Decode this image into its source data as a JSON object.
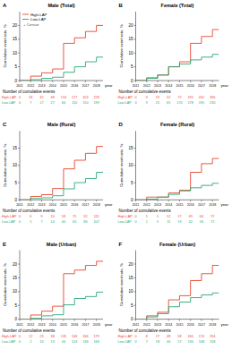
{
  "chart_data": [
    {
      "type": "line",
      "line_style": "step",
      "panel": "A",
      "title": "Male (Total)",
      "x_label": "year",
      "y_label": "Cumulative event rate, %",
      "events_title": "Number of cumulative events",
      "legend": "upper left",
      "censor_label": "+ Censor",
      "x": [
        2011,
        2012,
        2013,
        2014,
        2015,
        2016,
        2017,
        2018
      ],
      "xlim": [
        2011,
        2018.6
      ],
      "xticks": [
        2011,
        2012,
        2013,
        2014,
        2015,
        2016,
        2017,
        2018
      ],
      "ylim": [
        0,
        25
      ],
      "yticks": [
        0,
        5,
        10,
        15,
        20
      ],
      "series": [
        {
          "name": "High-LAP",
          "color": "#e8452c",
          "values": [
            0,
            1.6,
            2.8,
            4.2,
            13.5,
            15.5,
            17.8,
            20
          ],
          "events": [
            0,
            18,
            32,
            48,
            154,
            177,
            203,
            228
          ]
        },
        {
          "name": "Low-LAP",
          "color": "#2aa876",
          "values": [
            0,
            0.3,
            0.8,
            1.2,
            3,
            5,
            6.8,
            8.5
          ],
          "events": [
            0,
            7,
            17,
            27,
            66,
            110,
            150,
            199
          ]
        }
      ]
    },
    {
      "type": "line",
      "line_style": "step",
      "panel": "B",
      "title": "Female (Total)",
      "x_label": "year",
      "y_label": "Cumulative event rate, %",
      "events_title": "Number of cumulative events",
      "x": [
        2011,
        2012,
        2013,
        2014,
        2015,
        2016,
        2017,
        2018
      ],
      "xlim": [
        2011,
        2018.6
      ],
      "xticks": [
        2011,
        2012,
        2013,
        2014,
        2015,
        2016,
        2017,
        2018
      ],
      "ylim": [
        0,
        25
      ],
      "yticks": [
        0,
        5,
        10,
        15,
        20
      ],
      "series": [
        {
          "name": "High-LAP",
          "color": "#e8452c",
          "values": [
            0,
            1,
            2,
            5,
            6.8,
            13.5,
            16,
            18.5
          ],
          "events": [
            0,
            9,
            19,
            52,
            72,
            195,
            242,
            266
          ]
        },
        {
          "name": "Low-LAP",
          "color": "#2aa876",
          "values": [
            0,
            0.8,
            2,
            5,
            6,
            7.5,
            8.5,
            9.5
          ],
          "events": [
            0,
            9,
            25,
            65,
            170,
            178,
            195,
            230
          ]
        }
      ]
    },
    {
      "type": "line",
      "line_style": "step",
      "panel": "C",
      "title": "Male (Rural)",
      "x_label": "year",
      "y_label": "Cumulative event rate, %",
      "events_title": "Number of cumulative events",
      "x": [
        2011,
        2012,
        2013,
        2014,
        2015,
        2016,
        2017,
        2018
      ],
      "xlim": [
        2011,
        2018.6
      ],
      "xticks": [
        2011,
        2012,
        2013,
        2014,
        2015,
        2016,
        2017,
        2018
      ],
      "ylim": [
        0,
        20
      ],
      "yticks": [
        0,
        5,
        10,
        15
      ],
      "series": [
        {
          "name": "High-LAP",
          "color": "#e8452c",
          "values": [
            0,
            1,
            1.5,
            3.3,
            9,
            11.5,
            13.5,
            15.5
          ],
          "events": [
            0,
            6,
            9,
            20,
            58,
            75,
            92,
            115
          ]
        },
        {
          "name": "Low-LAP",
          "color": "#2aa876",
          "values": [
            0,
            0.4,
            0.6,
            1.2,
            3.2,
            5,
            6.2,
            8
          ],
          "events": [
            0,
            5,
            7,
            14,
            40,
            65,
            80,
            107
          ]
        }
      ]
    },
    {
      "type": "line",
      "line_style": "step",
      "panel": "D",
      "title": "Female (Rural)",
      "x_label": "year",
      "y_label": "Cumulative event rate, %",
      "events_title": "Number of cumulative events",
      "x": [
        2011,
        2012,
        2013,
        2014,
        2015,
        2016,
        2017,
        2018
      ],
      "xlim": [
        2011,
        2018.6
      ],
      "xticks": [
        2011,
        2012,
        2013,
        2014,
        2015,
        2016,
        2017,
        2018
      ],
      "ylim": [
        0,
        20
      ],
      "yticks": [
        0,
        5,
        10,
        15
      ],
      "series": [
        {
          "name": "High-LAP",
          "color": "#e8452c",
          "values": [
            0,
            0.8,
            0.8,
            2,
            2.8,
            8,
            10.5,
            12
          ],
          "events": [
            0,
            5,
            5,
            12,
            17,
            49,
            64,
            72
          ]
        },
        {
          "name": "Low-LAP",
          "color": "#2aa876",
          "values": [
            0,
            0.2,
            0.8,
            1.6,
            2.6,
            3.5,
            4.2,
            4.8
          ],
          "events": [
            0,
            1,
            5,
            11,
            19,
            42,
            56,
            72
          ]
        }
      ]
    },
    {
      "type": "line",
      "line_style": "step",
      "panel": "E",
      "title": "Male (Urban)",
      "x_label": "year",
      "y_label": "Cumulative event rate, %",
      "events_title": "Number of cumulative events",
      "x": [
        2011,
        2012,
        2013,
        2014,
        2015,
        2016,
        2017,
        2018
      ],
      "xlim": [
        2011,
        2018.6
      ],
      "xticks": [
        2011,
        2012,
        2013,
        2014,
        2015,
        2016,
        2017,
        2018
      ],
      "ylim": [
        0,
        25
      ],
      "yticks": [
        0,
        5,
        10,
        15,
        20
      ],
      "series": [
        {
          "name": "High-LAP",
          "color": "#e8452c",
          "values": [
            0,
            1.5,
            2.9,
            4.7,
            16.5,
            17.8,
            19.5,
            21
          ],
          "events": [
            0,
            12,
            23,
            38,
            135,
            146,
            166,
            179
          ]
        },
        {
          "name": "Low-LAP",
          "color": "#2aa876",
          "values": [
            0,
            0.3,
            1.2,
            1.6,
            5.2,
            7.5,
            8.2,
            9.8
          ],
          "events": [
            0,
            2,
            10,
            13,
            44,
            124,
            136,
            166
          ]
        }
      ]
    },
    {
      "type": "line",
      "line_style": "step",
      "panel": "F",
      "title": "Female (Urban)",
      "x_label": "year",
      "y_label": "Cumulative event rate, %",
      "events_title": "Number of cumulative events",
      "x": [
        2011,
        2012,
        2013,
        2014,
        2015,
        2016,
        2017,
        2018
      ],
      "xlim": [
        2011,
        2018.6
      ],
      "xticks": [
        2011,
        2012,
        2013,
        2014,
        2015,
        2016,
        2017,
        2018
      ],
      "ylim": [
        0,
        25
      ],
      "yticks": [
        0,
        5,
        10,
        15,
        20
      ],
      "series": [
        {
          "name": "High-LAP",
          "color": "#e8452c",
          "values": [
            0,
            1.2,
            2.5,
            7,
            8.5,
            14,
            16.5,
            19.5
          ],
          "events": [
            0,
            8,
            17,
            48,
            58,
            166,
            174,
            194
          ]
        },
        {
          "name": "Low-LAP",
          "color": "#2aa876",
          "values": [
            0,
            0.8,
            2,
            4.5,
            6.2,
            7.8,
            8.8,
            9.5
          ],
          "events": [
            0,
            7,
            18,
            40,
            57,
            130,
            148,
            158
          ]
        }
      ]
    }
  ]
}
